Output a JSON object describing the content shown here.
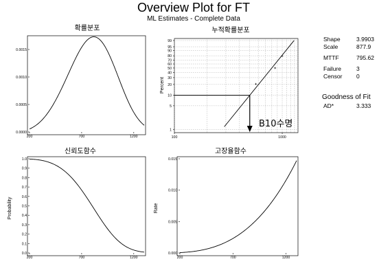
{
  "title": "Overview Plot for FT",
  "subtitle": "ML Estimates - Complete Data",
  "stats": [
    {
      "label": "Shape",
      "value": "3.9903"
    },
    {
      "label": "Scale",
      "value": "877.9"
    },
    {
      "label": "MTTF",
      "value": "795.62"
    },
    {
      "label": "Failure",
      "value": "3"
    },
    {
      "label": "Censor",
      "value": "0"
    }
  ],
  "gof": {
    "title": "Goodness of Fit",
    "label": "AD*",
    "value": "3.333"
  },
  "annotation": "B10수명",
  "chart_data": [
    {
      "type": "line",
      "title": "확률분포",
      "xlabel": "",
      "ylabel": "",
      "xlim": [
        200,
        1300
      ],
      "ylim": [
        0,
        0.00175
      ],
      "xticks": [
        200,
        700,
        1200
      ],
      "yticks": [
        "0.0000",
        "0.0005",
        "0.0010",
        "0.0015"
      ],
      "ytick_values": [
        0,
        0.0005,
        0.001,
        0.0015
      ],
      "curve": "weibull_pdf",
      "shape": 3.9903,
      "scale": 877.9
    },
    {
      "type": "scatter",
      "title": "누적확률분포",
      "xlabel": "",
      "ylabel": "Percent",
      "xscale": "log",
      "yscale": "weibull",
      "xlim": [
        100,
        1400
      ],
      "ylim": [
        0.8,
        99.5
      ],
      "xticks": [
        100,
        1000
      ],
      "yticks": [
        1,
        5,
        10,
        20,
        30,
        40,
        50,
        60,
        70,
        80,
        90,
        95,
        99
      ],
      "points": [
        {
          "x": 570,
          "y": 20.6
        },
        {
          "x": 860,
          "y": 50
        },
        {
          "x": 1000,
          "y": 79.4
        }
      ],
      "fit": {
        "shape": 3.9903,
        "scale": 877.9
      },
      "b10": {
        "percent": 10,
        "x": 500
      }
    },
    {
      "type": "line",
      "title": "신뢰도함수",
      "xlabel": "",
      "ylabel": "Probability",
      "xlim": [
        200,
        1300
      ],
      "ylim": [
        0,
        1.0
      ],
      "xticks": [
        200,
        700,
        1200
      ],
      "yticks": [
        "0.0",
        "0.1",
        "0.2",
        "0.3",
        "0.4",
        "0.5",
        "0.6",
        "0.7",
        "0.8",
        "0.9",
        "1.0"
      ],
      "ytick_values": [
        0,
        0.1,
        0.2,
        0.3,
        0.4,
        0.5,
        0.6,
        0.7,
        0.8,
        0.9,
        1.0
      ],
      "curve": "weibull_reliability",
      "shape": 3.9903,
      "scale": 877.9
    },
    {
      "type": "line",
      "title": "고장율함수",
      "xlabel": "",
      "ylabel": "Rate",
      "xlim": [
        200,
        1300
      ],
      "ylim": [
        0,
        0.015
      ],
      "xticks": [
        200,
        700,
        1200
      ],
      "yticks": [
        "0.000",
        "0.005",
        "0.010",
        "0.015"
      ],
      "ytick_values": [
        0,
        0.005,
        0.01,
        0.015
      ],
      "curve": "weibull_hazard",
      "shape": 3.9903,
      "scale": 877.9
    }
  ]
}
